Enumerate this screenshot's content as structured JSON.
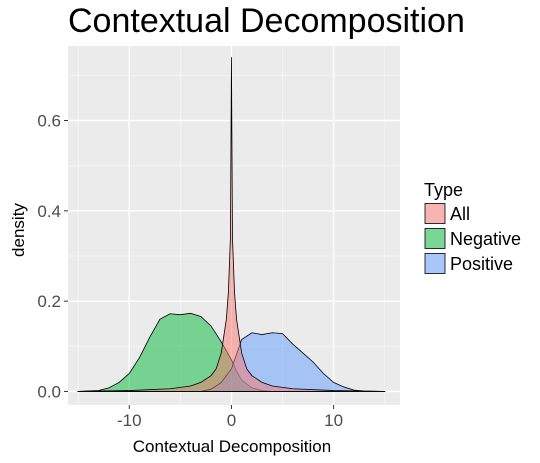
{
  "chart_data": {
    "type": "area",
    "title": "Contextual Decomposition",
    "xlabel": "Contextual Decomposition",
    "ylabel": "density",
    "xlim": [
      -16,
      16.5
    ],
    "ylim": [
      -0.03,
      0.765
    ],
    "x_ticks": [
      -10,
      0,
      10
    ],
    "x_tick_labels": [
      "-10",
      "0",
      "10"
    ],
    "y_ticks": [
      0.0,
      0.2,
      0.4,
      0.6
    ],
    "y_tick_labels": [
      "0.0",
      "0.2",
      "0.4",
      "0.6"
    ],
    "grid": true,
    "legend": {
      "title": "Type",
      "position": "right"
    },
    "series": [
      {
        "name": "All",
        "color": "#F8766D",
        "points": [
          [
            -15,
            0
          ],
          [
            -10,
            0.002
          ],
          [
            -6,
            0.006
          ],
          [
            -4,
            0.012
          ],
          [
            -3,
            0.02
          ],
          [
            -2,
            0.035
          ],
          [
            -1.5,
            0.05
          ],
          [
            -1,
            0.085
          ],
          [
            -0.5,
            0.16
          ],
          [
            -0.3,
            0.22
          ],
          [
            -0.1,
            0.34
          ],
          [
            0,
            0.74
          ],
          [
            0.1,
            0.34
          ],
          [
            0.3,
            0.22
          ],
          [
            0.5,
            0.16
          ],
          [
            1,
            0.085
          ],
          [
            1.5,
            0.05
          ],
          [
            2,
            0.035
          ],
          [
            3,
            0.02
          ],
          [
            4,
            0.012
          ],
          [
            6,
            0.006
          ],
          [
            10,
            0.002
          ],
          [
            15,
            0
          ]
        ]
      },
      {
        "name": "Negative",
        "color": "#00BA38",
        "points": [
          [
            -15,
            0
          ],
          [
            -13,
            0.002
          ],
          [
            -12,
            0.008
          ],
          [
            -11,
            0.02
          ],
          [
            -10,
            0.04
          ],
          [
            -9,
            0.075
          ],
          [
            -8,
            0.12
          ],
          [
            -7,
            0.16
          ],
          [
            -6,
            0.172
          ],
          [
            -5,
            0.17
          ],
          [
            -4,
            0.173
          ],
          [
            -3,
            0.166
          ],
          [
            -2,
            0.145
          ],
          [
            -1,
            0.11
          ],
          [
            0,
            0.07
          ],
          [
            0.5,
            0.045
          ],
          [
            1,
            0.025
          ],
          [
            2,
            0.008
          ],
          [
            3,
            0.002
          ],
          [
            4,
            0
          ]
        ]
      },
      {
        "name": "Positive",
        "color": "#619CFF",
        "points": [
          [
            -3,
            0
          ],
          [
            -2,
            0.005
          ],
          [
            -1,
            0.02
          ],
          [
            0,
            0.05
          ],
          [
            1,
            0.115
          ],
          [
            2,
            0.13
          ],
          [
            3,
            0.126
          ],
          [
            4,
            0.13
          ],
          [
            5,
            0.128
          ],
          [
            6,
            0.105
          ],
          [
            7,
            0.085
          ],
          [
            8,
            0.065
          ],
          [
            9,
            0.04
          ],
          [
            10,
            0.02
          ],
          [
            11,
            0.01
          ],
          [
            12,
            0.003
          ],
          [
            13,
            0.001
          ],
          [
            15,
            0
          ]
        ]
      }
    ]
  }
}
